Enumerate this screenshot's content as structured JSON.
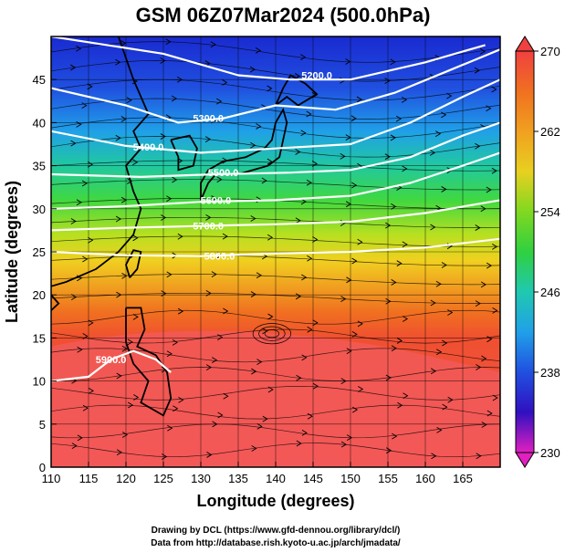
{
  "title": "GSM 06Z07Mar2024 (500.0hPa)",
  "axes": {
    "xlabel": "Longitude (degrees)",
    "ylabel": "Latitude  (degrees)",
    "x_ticks": [
      "110",
      "115",
      "120",
      "125",
      "130",
      "135",
      "140",
      "145",
      "150",
      "155",
      "160",
      "165"
    ],
    "y_ticks": [
      "0",
      "5",
      "10",
      "15",
      "20",
      "25",
      "30",
      "35",
      "40",
      "45"
    ],
    "x_range": [
      110,
      170
    ],
    "y_range": [
      0,
      50
    ]
  },
  "colorbar": {
    "labels": [
      "270",
      "262",
      "254",
      "246",
      "238",
      "230"
    ],
    "range": [
      230,
      270
    ]
  },
  "chart_data": {
    "type": "heatmap",
    "title": "GSM 06Z07Mar2024 (500.0hPa)",
    "xlabel": "Longitude (degrees)",
    "ylabel": "Latitude  (degrees)",
    "xlim": [
      110,
      170
    ],
    "ylim": [
      0,
      50
    ],
    "colorbar_range": [
      230,
      270
    ],
    "contours": [
      {
        "label": "5200.0",
        "lon": 145.5,
        "lat": 45.5,
        "points": [
          [
            110,
            50
          ],
          [
            125,
            48
          ],
          [
            135,
            45.5
          ],
          [
            142,
            45
          ],
          [
            150,
            45
          ],
          [
            160,
            47
          ],
          [
            168,
            49
          ]
        ]
      },
      {
        "label": "5300.0",
        "lon": 131,
        "lat": 40.5,
        "points": [
          [
            110,
            44
          ],
          [
            120,
            42
          ],
          [
            127,
            40
          ],
          [
            133,
            40.5
          ],
          [
            140,
            42
          ],
          [
            148,
            41.5
          ],
          [
            156,
            43.5
          ],
          [
            163,
            46
          ],
          [
            170,
            48.5
          ]
        ]
      },
      {
        "label": "5400.0",
        "lon": 123,
        "lat": 37.2,
        "points": [
          [
            110,
            39
          ],
          [
            120,
            37.3
          ],
          [
            130,
            36.5
          ],
          [
            140,
            37
          ],
          [
            150,
            37.5
          ],
          [
            158,
            40
          ],
          [
            165,
            43
          ],
          [
            170,
            45
          ]
        ]
      },
      {
        "label": "5500.0",
        "lon": 133,
        "lat": 34.2,
        "points": [
          [
            110,
            34
          ],
          [
            122,
            33.7
          ],
          [
            132,
            34
          ],
          [
            142,
            34.2
          ],
          [
            150,
            34.5
          ],
          [
            158,
            36
          ],
          [
            165,
            38.5
          ],
          [
            170,
            40
          ]
        ]
      },
      {
        "label": "5600.0",
        "lon": 132,
        "lat": 31,
        "points": [
          [
            110,
            30
          ],
          [
            120,
            30.3
          ],
          [
            130,
            30.8
          ],
          [
            140,
            31
          ],
          [
            150,
            31.5
          ],
          [
            158,
            33
          ],
          [
            165,
            35
          ],
          [
            170,
            36.5
          ]
        ]
      },
      {
        "label": "5700.0",
        "lon": 131,
        "lat": 28,
        "points": [
          [
            110,
            27.5
          ],
          [
            120,
            27.8
          ],
          [
            130,
            28
          ],
          [
            140,
            28.2
          ],
          [
            150,
            28.5
          ],
          [
            160,
            29.5
          ],
          [
            170,
            31
          ]
        ]
      },
      {
        "label": "5800.0",
        "lon": 132.5,
        "lat": 24.5,
        "points": [
          [
            110,
            25
          ],
          [
            120,
            24.6
          ],
          [
            130,
            24.5
          ],
          [
            140,
            24.8
          ],
          [
            150,
            25
          ],
          [
            160,
            25.5
          ],
          [
            170,
            26.5
          ]
        ]
      },
      {
        "label": "5900.0",
        "lon": 118,
        "lat": 12.5,
        "points": [
          [
            110,
            10
          ],
          [
            115,
            10.5
          ],
          [
            118,
            12.5
          ],
          [
            121,
            13.5
          ],
          [
            124,
            12.5
          ],
          [
            126,
            11
          ]
        ]
      }
    ],
    "temperature_bands": [
      {
        "lat_min": 0,
        "lat_max": 18,
        "value": 269
      },
      {
        "lat_min": 18,
        "lat_max": 24,
        "value": 267
      },
      {
        "lat_min": 24,
        "lat_max": 28,
        "value": 263
      },
      {
        "lat_min": 28,
        "lat_max": 31,
        "value": 260
      },
      {
        "lat_min": 31,
        "lat_max": 34,
        "value": 256
      },
      {
        "lat_min": 34,
        "lat_max": 37,
        "value": 252
      },
      {
        "lat_min": 37,
        "lat_max": 40,
        "value": 247
      },
      {
        "lat_min": 40,
        "lat_max": 43,
        "value": 242
      },
      {
        "lat_min": 43,
        "lat_max": 50,
        "value": 238
      }
    ]
  },
  "credits": {
    "line1": "Drawing by DCL (https://www.gfd-dennou.org/library/dcl/)",
    "line2": "Data from http://database.rish.kyoto-u.ac.jp/arch/jmadata/"
  }
}
